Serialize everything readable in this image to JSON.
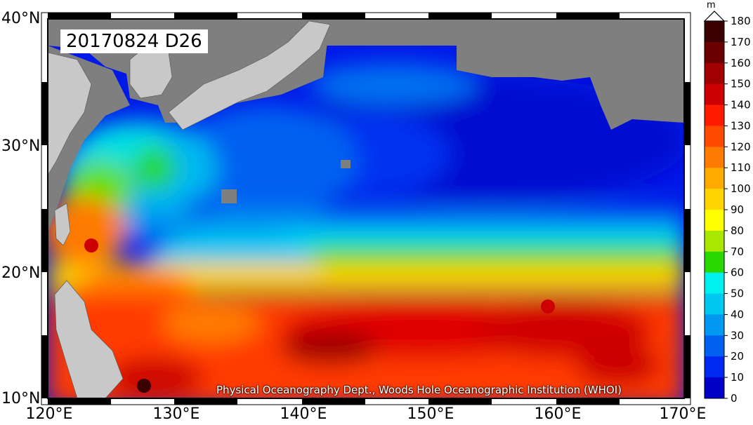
{
  "map": {
    "date_label": "20170824 D26",
    "credit": "Physical Oceanography Dept., Woods Hole Oceanographic Institution (WHOI)",
    "lat_labels": [
      "40°N",
      "30°N",
      "20°N",
      "10°N"
    ],
    "lon_labels": [
      "120°E",
      "130°E",
      "140°E",
      "150°E",
      "160°E",
      "170°E"
    ],
    "land_color": "#7f7f7f",
    "neighbor_land_color": "#c8c8c8"
  },
  "colorbar": {
    "unit": "m",
    "ticks": [
      "180",
      "170",
      "160",
      "150",
      "140",
      "130",
      "120",
      "110",
      "100",
      "90",
      "80",
      "70",
      "60",
      "50",
      "40",
      "30",
      "20",
      "10",
      "0"
    ],
    "colors": [
      "#3b0000",
      "#6b0000",
      "#a00000",
      "#cc0000",
      "#ff1a00",
      "#ff4a00",
      "#ff7a00",
      "#ffaa00",
      "#ffd400",
      "#ffff00",
      "#a8e800",
      "#28d800",
      "#00f0f0",
      "#00c8f0",
      "#0098f0",
      "#0060f0",
      "#0028f0",
      "#0000c8",
      "#00008c"
    ]
  }
}
